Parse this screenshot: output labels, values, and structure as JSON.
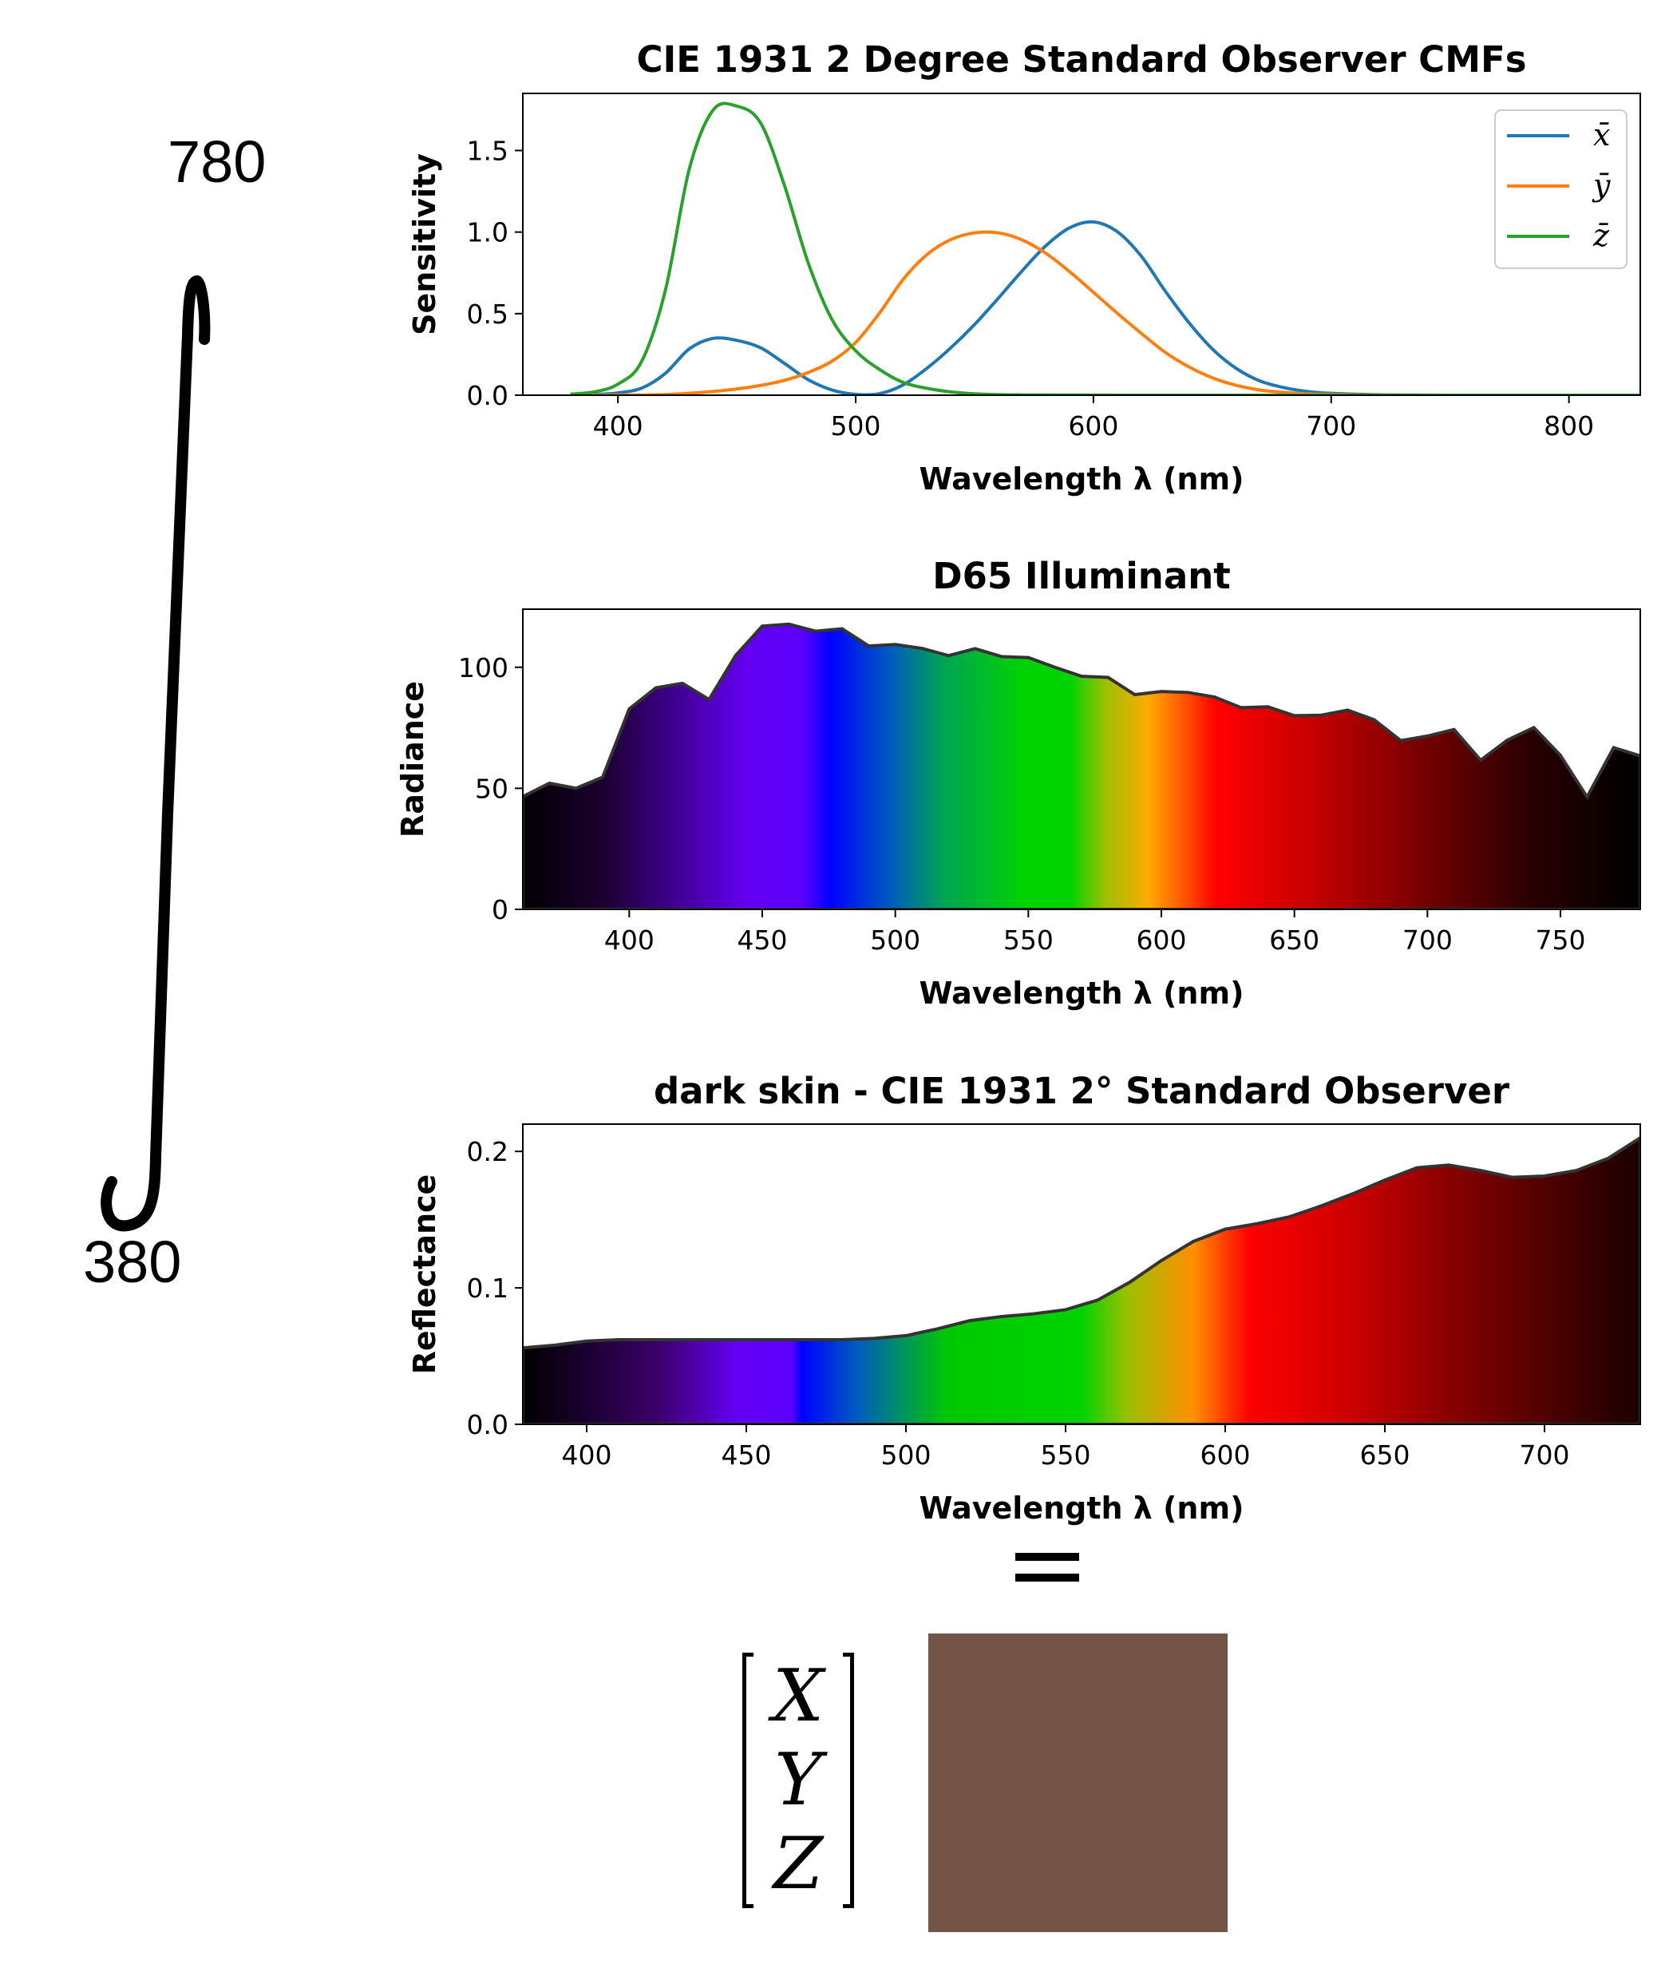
{
  "side_labels": {
    "top": "780",
    "bottom": "380"
  },
  "equals_sign": "=",
  "matrix": {
    "rows": [
      "X",
      "Y",
      "Z"
    ]
  },
  "swatch_color": "#745446",
  "colors": {
    "x_bar": "#1f77b4",
    "y_bar": "#ff7f0e",
    "z_bar": "#2ca02c",
    "fill_outline": "#333333"
  },
  "chart_data": [
    {
      "type": "line",
      "title": "CIE 1931 2 Degree Standard Observer CMFs",
      "xlabel": "Wavelength λ (nm)",
      "ylabel": "Sensitivity",
      "xlim": [
        360,
        830
      ],
      "ylim": [
        0,
        1.85
      ],
      "xticks": [
        "400",
        "500",
        "600",
        "700",
        "800"
      ],
      "yticks": [
        "0.0",
        "0.5",
        "1.0",
        "1.5"
      ],
      "legend": {
        "position": "top-right",
        "entries": [
          "x̄",
          "ȳ",
          "z̄"
        ]
      },
      "x": [
        380,
        390,
        400,
        410,
        420,
        430,
        440,
        450,
        460,
        470,
        480,
        490,
        500,
        510,
        520,
        530,
        540,
        550,
        560,
        570,
        580,
        590,
        600,
        610,
        620,
        630,
        640,
        650,
        660,
        670,
        680,
        690,
        700,
        720,
        740,
        760,
        780,
        800,
        830
      ],
      "series": [
        {
          "name": "x̄",
          "values": [
            0.0014,
            0.0042,
            0.0143,
            0.0435,
            0.1344,
            0.2839,
            0.3483,
            0.3362,
            0.2908,
            0.1954,
            0.0956,
            0.032,
            0.0049,
            0.0093,
            0.0633,
            0.1655,
            0.2904,
            0.4334,
            0.5945,
            0.7621,
            0.9163,
            1.0263,
            1.0622,
            1.0026,
            0.8544,
            0.6424,
            0.4479,
            0.2835,
            0.1649,
            0.0874,
            0.0468,
            0.0227,
            0.0114,
            0.0029,
            0.0007,
            0.0002,
            0.0,
            0.0,
            0.0
          ]
        },
        {
          "name": "ȳ",
          "values": [
            0.0,
            0.0001,
            0.0004,
            0.0012,
            0.004,
            0.0116,
            0.023,
            0.038,
            0.06,
            0.091,
            0.139,
            0.208,
            0.323,
            0.503,
            0.71,
            0.862,
            0.954,
            0.995,
            0.995,
            0.952,
            0.87,
            0.757,
            0.631,
            0.503,
            0.381,
            0.265,
            0.175,
            0.107,
            0.061,
            0.032,
            0.017,
            0.0082,
            0.0041,
            0.001,
            0.0003,
            0.0001,
            0.0,
            0.0,
            0.0
          ]
        },
        {
          "name": "z̄",
          "values": [
            0.0065,
            0.0201,
            0.0679,
            0.2074,
            0.6456,
            1.3856,
            1.7471,
            1.7721,
            1.6692,
            1.2876,
            0.813,
            0.4652,
            0.272,
            0.1582,
            0.0782,
            0.0422,
            0.0203,
            0.0087,
            0.0039,
            0.0021,
            0.0017,
            0.0011,
            0.0008,
            0.0003,
            0.0002,
            0.0,
            0.0,
            0.0,
            0.0,
            0.0,
            0.0,
            0.0,
            0.0,
            0.0,
            0.0,
            0.0,
            0.0,
            0.0,
            0.0
          ]
        }
      ]
    },
    {
      "type": "area",
      "title": "D65 Illuminant",
      "xlabel": "Wavelength λ (nm)",
      "ylabel": "Radiance",
      "xlim": [
        360,
        780
      ],
      "ylim": [
        0,
        124
      ],
      "xticks": [
        "400",
        "450",
        "500",
        "550",
        "600",
        "650",
        "700",
        "750"
      ],
      "yticks": [
        "0",
        "50",
        "100"
      ],
      "x": [
        360,
        370,
        380,
        390,
        400,
        410,
        420,
        430,
        440,
        450,
        460,
        470,
        480,
        490,
        500,
        510,
        520,
        530,
        540,
        550,
        560,
        570,
        580,
        590,
        600,
        610,
        620,
        630,
        640,
        650,
        660,
        670,
        680,
        690,
        700,
        710,
        720,
        730,
        740,
        750,
        760,
        770,
        780
      ],
      "values": [
        46.6,
        52.1,
        50.0,
        54.6,
        82.8,
        91.5,
        93.4,
        86.7,
        104.9,
        117.0,
        117.8,
        114.9,
        115.9,
        108.8,
        109.4,
        107.8,
        104.8,
        107.7,
        104.4,
        104.0,
        100.0,
        96.3,
        95.8,
        88.7,
        90.0,
        89.6,
        87.7,
        83.3,
        83.7,
        80.0,
        80.2,
        82.3,
        78.3,
        69.7,
        71.6,
        74.3,
        61.6,
        69.9,
        75.1,
        63.6,
        46.4,
        66.8,
        63.4
      ]
    },
    {
      "type": "area",
      "title": "dark skin - CIE 1931 2° Standard Observer",
      "xlabel": "Wavelength λ (nm)",
      "ylabel": "Reflectance",
      "xlim": [
        380,
        730
      ],
      "ylim": [
        0,
        0.22
      ],
      "xticks": [
        "400",
        "450",
        "500",
        "550",
        "600",
        "650",
        "700"
      ],
      "yticks": [
        "0.0",
        "0.1",
        "0.2"
      ],
      "x": [
        380,
        390,
        400,
        410,
        420,
        430,
        440,
        450,
        460,
        470,
        480,
        490,
        500,
        510,
        520,
        530,
        540,
        550,
        560,
        570,
        580,
        590,
        600,
        610,
        620,
        630,
        640,
        650,
        660,
        670,
        680,
        690,
        700,
        710,
        720,
        730
      ],
      "values": [
        0.056,
        0.058,
        0.061,
        0.062,
        0.062,
        0.062,
        0.062,
        0.062,
        0.062,
        0.062,
        0.062,
        0.063,
        0.065,
        0.07,
        0.076,
        0.079,
        0.081,
        0.084,
        0.091,
        0.104,
        0.12,
        0.134,
        0.143,
        0.147,
        0.152,
        0.16,
        0.169,
        0.179,
        0.188,
        0.19,
        0.186,
        0.181,
        0.182,
        0.186,
        0.195,
        0.21
      ]
    }
  ]
}
